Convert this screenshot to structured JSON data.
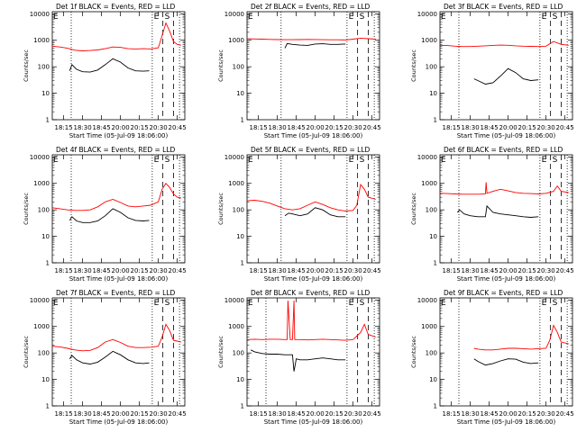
{
  "figure": {
    "colors": {
      "events": "#000000",
      "lld": "#ff0000",
      "axis": "#000000",
      "background": "#ffffff"
    },
    "y_ticks": [
      1,
      10,
      100,
      1000,
      10000
    ],
    "y_tick_labels": [
      "1",
      "10",
      "100",
      "1000",
      "10000"
    ],
    "x_ticks": [
      18.25,
      18.5,
      18.75,
      19.0,
      19.25,
      19.5,
      19.75
    ],
    "x_tick_labels": [
      "18:15",
      "18:30",
      "18:45",
      "20:00",
      "20:15",
      "20:30",
      "20:45"
    ],
    "xlim": [
      18.1,
      19.85
    ],
    "ylim": [
      1,
      12000
    ],
    "ylabel": "Counts/sec",
    "xlabel": "Start Time (05-Jul-09 18:06:00)",
    "flag_E": "E",
    "flag_S": "S"
  },
  "chart_data": [
    {
      "type": "line",
      "title": "Det 1f BLACK = Events, RED = LLD",
      "log_y": true,
      "vlines": {
        "dotted": [
          18.35,
          19.42,
          19.78
        ],
        "dashed": [
          19.56,
          19.7
        ]
      },
      "series": [
        {
          "name": "Events",
          "x": [
            18.33,
            18.36,
            18.42,
            18.5,
            18.6,
            18.7,
            18.8,
            18.9,
            19.0,
            19.1,
            19.2,
            19.3,
            19.38
          ],
          "y": [
            70,
            120,
            80,
            65,
            63,
            75,
            120,
            200,
            150,
            90,
            70,
            68,
            70
          ]
        },
        {
          "name": "LLD",
          "x": [
            18.1,
            18.2,
            18.3,
            18.4,
            18.5,
            18.6,
            18.7,
            18.8,
            18.9,
            19.0,
            19.1,
            19.2,
            19.3,
            19.4,
            19.5,
            19.55,
            19.6,
            19.65,
            19.7,
            19.75,
            19.8
          ],
          "y": [
            600,
            560,
            500,
            420,
            400,
            410,
            430,
            480,
            560,
            540,
            480,
            470,
            480,
            470,
            520,
            1500,
            4500,
            2200,
            900,
            700,
            650
          ]
        }
      ]
    },
    {
      "type": "line",
      "title": "Det 2f BLACK = Events, RED = LLD",
      "log_y": true,
      "vlines": {
        "dotted": [
          18.55,
          19.42,
          19.78
        ],
        "dashed": [
          19.56,
          19.7
        ]
      },
      "series": [
        {
          "name": "Events",
          "x": [
            18.6,
            18.63,
            18.7,
            18.8,
            18.9,
            19.0,
            19.1,
            19.2,
            19.3,
            19.4
          ],
          "y": [
            500,
            750,
            700,
            660,
            640,
            720,
            740,
            700,
            700,
            720
          ]
        },
        {
          "name": "LLD",
          "x": [
            18.1,
            18.2,
            18.3,
            18.4,
            18.5,
            18.6,
            18.7,
            18.8,
            18.9,
            19.0,
            19.1,
            19.2,
            19.3,
            19.4,
            19.5,
            19.6,
            19.7,
            19.8
          ],
          "y": [
            1150,
            1120,
            1100,
            1080,
            1060,
            1050,
            1050,
            1060,
            1080,
            1070,
            1050,
            1040,
            1040,
            1030,
            1100,
            1200,
            1150,
            1100
          ]
        }
      ]
    },
    {
      "type": "line",
      "title": "Det 3f BLACK = Events, RED = LLD",
      "log_y": true,
      "vlines": {
        "dotted": [
          18.35,
          19.42,
          19.78
        ],
        "dashed": [
          19.56,
          19.7
        ]
      },
      "series": [
        {
          "name": "Events",
          "x": [
            18.55,
            18.6,
            18.7,
            18.8,
            18.9,
            19.0,
            19.1,
            19.2,
            19.3,
            19.4
          ],
          "y": [
            35,
            30,
            22,
            25,
            45,
            85,
            60,
            35,
            30,
            32
          ]
        },
        {
          "name": "LLD",
          "x": [
            18.1,
            18.2,
            18.3,
            18.4,
            18.5,
            18.6,
            18.7,
            18.8,
            18.9,
            19.0,
            19.1,
            19.2,
            19.3,
            19.4,
            19.5,
            19.6,
            19.7,
            19.8
          ],
          "y": [
            650,
            630,
            600,
            580,
            580,
            600,
            620,
            640,
            660,
            650,
            620,
            600,
            590,
            580,
            600,
            900,
            700,
            650
          ]
        }
      ]
    },
    {
      "type": "line",
      "title": "Det 4f BLACK = Events, RED = LLD",
      "log_y": true,
      "vlines": {
        "dotted": [
          18.35,
          19.42,
          19.78
        ],
        "dashed": [
          19.56,
          19.7
        ]
      },
      "series": [
        {
          "name": "Events",
          "x": [
            18.33,
            18.36,
            18.42,
            18.5,
            18.6,
            18.7,
            18.8,
            18.9,
            19.0,
            19.1,
            19.2,
            19.3,
            19.38
          ],
          "y": [
            40,
            55,
            38,
            33,
            33,
            38,
            60,
            110,
            80,
            50,
            40,
            38,
            40
          ]
        },
        {
          "name": "LLD",
          "x": [
            18.1,
            18.2,
            18.3,
            18.4,
            18.5,
            18.6,
            18.7,
            18.8,
            18.9,
            19.0,
            19.1,
            19.2,
            19.3,
            19.4,
            19.5,
            19.55,
            19.6,
            19.65,
            19.7,
            19.75,
            19.8
          ],
          "y": [
            120,
            110,
            100,
            95,
            95,
            100,
            130,
            200,
            250,
            190,
            140,
            130,
            140,
            150,
            200,
            600,
            1000,
            700,
            400,
            300,
            280
          ]
        }
      ]
    },
    {
      "type": "line",
      "title": "Det 5f BLACK = Events, RED = LLD",
      "log_y": true,
      "vlines": {
        "dotted": [
          18.55,
          19.42,
          19.78
        ],
        "dashed": [
          19.56,
          19.7
        ]
      },
      "series": [
        {
          "name": "Events",
          "x": [
            18.6,
            18.65,
            18.7,
            18.8,
            18.9,
            19.0,
            19.1,
            19.2,
            19.3,
            19.4
          ],
          "y": [
            60,
            75,
            70,
            60,
            70,
            120,
            100,
            65,
            55,
            55
          ]
        },
        {
          "name": "LLD",
          "x": [
            18.1,
            18.2,
            18.3,
            18.4,
            18.5,
            18.6,
            18.7,
            18.8,
            18.9,
            19.0,
            19.1,
            19.2,
            19.3,
            19.4,
            19.5,
            19.55,
            19.6,
            19.65,
            19.7,
            19.8
          ],
          "y": [
            220,
            230,
            210,
            180,
            140,
            110,
            100,
            110,
            150,
            200,
            160,
            120,
            100,
            90,
            95,
            150,
            900,
            600,
            300,
            250
          ]
        }
      ]
    },
    {
      "type": "line",
      "title": "Det 6f BLACK = Events, RED = LLD",
      "log_y": true,
      "vlines": {
        "dotted": [
          18.35,
          19.42,
          19.78
        ],
        "dashed": [
          19.56,
          19.7
        ]
      },
      "series": [
        {
          "name": "Events",
          "x": [
            18.33,
            18.36,
            18.42,
            18.5,
            18.6,
            18.7,
            18.72,
            18.8,
            18.9,
            19.0,
            19.1,
            19.2,
            19.3,
            19.4
          ],
          "y": [
            80,
            100,
            70,
            60,
            55,
            55,
            140,
            80,
            70,
            65,
            60,
            55,
            52,
            55
          ]
        },
        {
          "name": "LLD",
          "x": [
            18.1,
            18.2,
            18.3,
            18.4,
            18.5,
            18.6,
            18.7,
            18.71,
            18.72,
            18.8,
            18.9,
            19.0,
            19.1,
            19.2,
            19.3,
            19.4,
            19.5,
            19.6,
            19.65,
            19.7,
            19.8
          ],
          "y": [
            420,
            410,
            400,
            390,
            390,
            390,
            400,
            1100,
            420,
            500,
            600,
            520,
            450,
            420,
            410,
            400,
            420,
            500,
            800,
            500,
            450
          ]
        }
      ]
    },
    {
      "type": "line",
      "title": "Det 7f BLACK = Events, RED = LLD",
      "log_y": true,
      "vlines": {
        "dotted": [
          18.35,
          19.42,
          19.78
        ],
        "dashed": [
          19.56,
          19.7
        ]
      },
      "series": [
        {
          "name": "Events",
          "x": [
            18.33,
            18.36,
            18.42,
            18.5,
            18.6,
            18.7,
            18.8,
            18.9,
            19.0,
            19.1,
            19.2,
            19.3,
            19.38
          ],
          "y": [
            60,
            80,
            55,
            42,
            38,
            45,
            70,
            115,
            85,
            55,
            42,
            40,
            42
          ]
        },
        {
          "name": "LLD",
          "x": [
            18.1,
            18.2,
            18.3,
            18.4,
            18.5,
            18.6,
            18.7,
            18.8,
            18.9,
            19.0,
            19.1,
            19.2,
            19.3,
            19.4,
            19.5,
            19.55,
            19.6,
            19.65,
            19.7,
            19.8
          ],
          "y": [
            180,
            170,
            150,
            130,
            120,
            125,
            160,
            260,
            320,
            250,
            180,
            160,
            160,
            165,
            180,
            400,
            1200,
            700,
            300,
            260
          ]
        }
      ]
    },
    {
      "type": "line",
      "title": "Det 8f BLACK = Events, RED = LLD",
      "log_y": true,
      "vlines": {
        "dotted": [
          18.35,
          19.42,
          19.78
        ],
        "dashed": [
          19.56,
          19.7
        ]
      },
      "series": [
        {
          "name": "Events",
          "x": [
            18.15,
            18.2,
            18.3,
            18.4,
            18.5,
            18.6,
            18.7,
            18.72,
            18.75,
            18.8,
            18.9,
            19.0,
            19.1,
            19.2,
            19.3,
            19.4
          ],
          "y": [
            130,
            110,
            95,
            90,
            90,
            85,
            85,
            20,
            60,
            55,
            55,
            60,
            65,
            60,
            55,
            55
          ]
        },
        {
          "name": "LLD",
          "x": [
            18.1,
            18.2,
            18.3,
            18.4,
            18.5,
            18.6,
            18.63,
            18.64,
            18.67,
            18.7,
            18.72,
            18.73,
            18.76,
            18.8,
            18.9,
            19.0,
            19.1,
            19.2,
            19.3,
            19.4,
            19.5,
            19.6,
            19.65,
            19.7,
            19.8
          ],
          "y": [
            320,
            330,
            320,
            330,
            330,
            320,
            320,
            9500,
            320,
            320,
            9500,
            320,
            320,
            320,
            310,
            320,
            330,
            320,
            310,
            300,
            320,
            600,
            1200,
            500,
            400
          ]
        }
      ]
    },
    {
      "type": "line",
      "title": "Det 9f BLACK = Events, RED = LLD",
      "log_y": true,
      "vlines": {
        "dotted": [
          18.35,
          19.42,
          19.78
        ],
        "dashed": [
          19.56,
          19.7
        ]
      },
      "series": [
        {
          "name": "Events",
          "x": [
            18.55,
            18.6,
            18.7,
            18.8,
            18.9,
            19.0,
            19.1,
            19.2,
            19.3,
            19.4
          ],
          "y": [
            60,
            48,
            35,
            40,
            50,
            60,
            58,
            45,
            40,
            42
          ]
        },
        {
          "name": "LLD",
          "x": [
            18.55,
            18.6,
            18.7,
            18.8,
            18.9,
            19.0,
            19.1,
            19.2,
            19.3,
            19.4,
            19.5,
            19.55,
            19.6,
            19.65,
            19.7,
            19.8
          ],
          "y": [
            150,
            140,
            130,
            130,
            140,
            150,
            150,
            145,
            140,
            145,
            150,
            300,
            1100,
            600,
            260,
            220
          ]
        }
      ]
    }
  ]
}
